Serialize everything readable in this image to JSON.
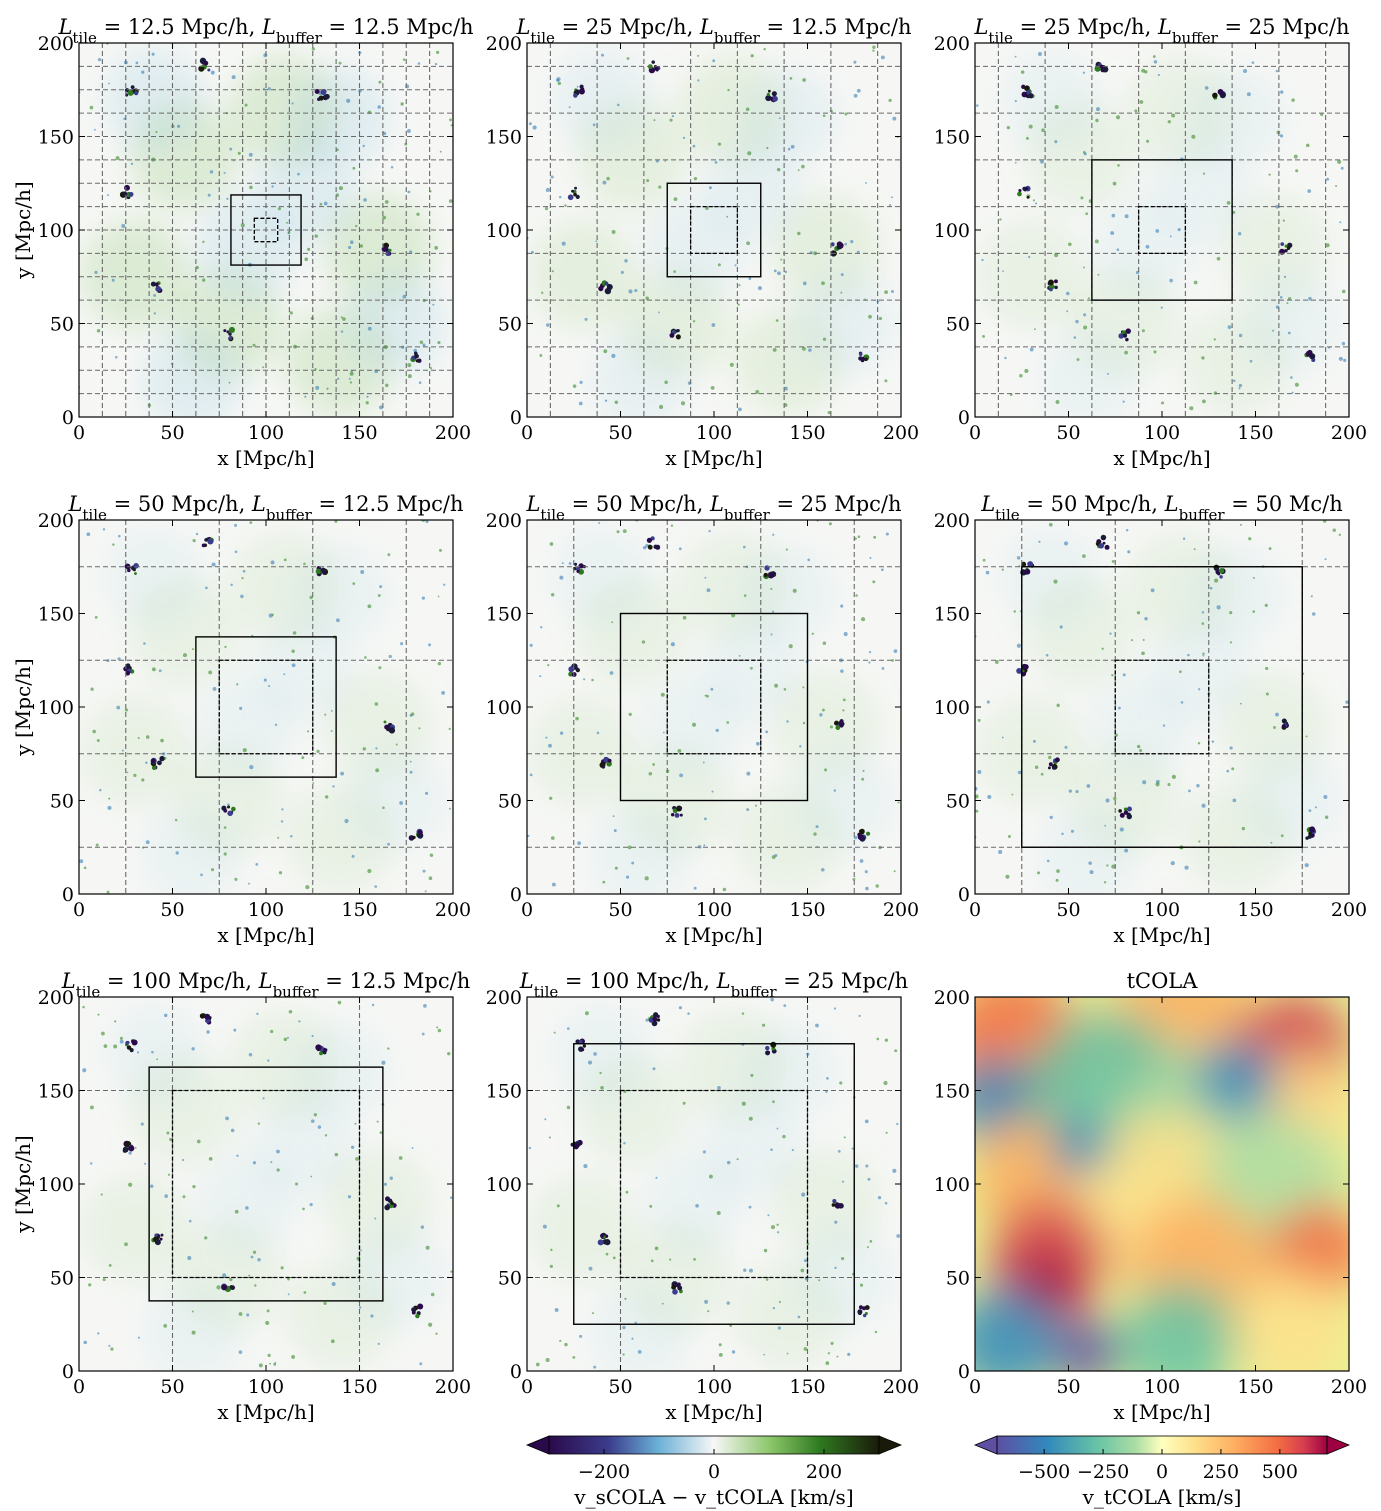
{
  "chart_data": [
    {
      "type": "heatmap",
      "title": "L_tile = 12.5 Mpc/h, L_buffer = 12.5 Mpc/h",
      "title_parts": {
        "tile_value": "12.5 Mpc/h",
        "buffer_value": "12.5 Mpc/h"
      },
      "xlabel": "x [Mpc/h]",
      "ylabel": "y [Mpc/h]",
      "xlim": [
        0,
        200
      ],
      "ylim": [
        0,
        200
      ],
      "xticks": [
        0,
        50,
        100,
        150,
        200
      ],
      "yticks": [
        0,
        50,
        100,
        150,
        200
      ],
      "tile_size": 12.5,
      "buffer_size": 12.5,
      "grid_lines": [
        12.5,
        25,
        37.5,
        50,
        62.5,
        75,
        87.5,
        100,
        112.5,
        125,
        137.5,
        150,
        162.5,
        175,
        187.5
      ],
      "inner_box": [
        93.75,
        106.25
      ],
      "outer_box": [
        81.25,
        118.75
      ],
      "colormap": "diverging blue-white-green",
      "show_ylabel": true,
      "show_xlabel": true
    },
    {
      "type": "heatmap",
      "title": "L_tile = 25 Mpc/h, L_buffer = 12.5 Mpc/h",
      "title_parts": {
        "tile_value": "25 Mpc/h",
        "buffer_value": "12.5 Mpc/h"
      },
      "xlabel": "x [Mpc/h]",
      "ylabel": "",
      "xlim": [
        0,
        200
      ],
      "ylim": [
        0,
        200
      ],
      "xticks": [
        0,
        50,
        100,
        150,
        200
      ],
      "yticks": [
        0,
        50,
        100,
        150,
        200
      ],
      "tile_size": 25,
      "buffer_size": 12.5,
      "grid_lines": [
        12.5,
        37.5,
        62.5,
        87.5,
        112.5,
        137.5,
        162.5,
        187.5
      ],
      "inner_box": [
        87.5,
        112.5
      ],
      "outer_box": [
        75,
        125
      ],
      "colormap": "diverging blue-white-green",
      "show_ylabel": false,
      "show_xlabel": true
    },
    {
      "type": "heatmap",
      "title": "L_tile = 25 Mpc/h, L_buffer = 25 Mpc/h",
      "title_parts": {
        "tile_value": "25 Mpc/h",
        "buffer_value": "25 Mpc/h"
      },
      "xlabel": "x [Mpc/h]",
      "ylabel": "",
      "xlim": [
        0,
        200
      ],
      "ylim": [
        0,
        200
      ],
      "xticks": [
        0,
        50,
        100,
        150,
        200
      ],
      "yticks": [
        0,
        50,
        100,
        150,
        200
      ],
      "tile_size": 25,
      "buffer_size": 25,
      "grid_lines": [
        12.5,
        37.5,
        62.5,
        87.5,
        112.5,
        137.5,
        162.5,
        187.5
      ],
      "inner_box": [
        87.5,
        112.5
      ],
      "outer_box": [
        62.5,
        137.5
      ],
      "colormap": "diverging blue-white-green",
      "show_ylabel": false,
      "show_xlabel": true
    },
    {
      "type": "heatmap",
      "title": "L_tile = 50 Mpc/h, L_buffer = 12.5 Mpc/h",
      "title_parts": {
        "tile_value": "50 Mpc/h",
        "buffer_value": "12.5 Mpc/h"
      },
      "xlabel": "x [Mpc/h]",
      "ylabel": "y [Mpc/h]",
      "xlim": [
        0,
        200
      ],
      "ylim": [
        0,
        200
      ],
      "xticks": [
        0,
        50,
        100,
        150,
        200
      ],
      "yticks": [
        0,
        50,
        100,
        150,
        200
      ],
      "tile_size": 50,
      "buffer_size": 12.5,
      "grid_lines": [
        25,
        75,
        125,
        175
      ],
      "inner_box": [
        75,
        125
      ],
      "outer_box": [
        62.5,
        137.5
      ],
      "colormap": "diverging blue-white-green",
      "show_ylabel": true,
      "show_xlabel": true
    },
    {
      "type": "heatmap",
      "title": "L_tile = 50 Mpc/h, L_buffer = 25 Mpc/h",
      "title_parts": {
        "tile_value": "50 Mpc/h",
        "buffer_value": "25 Mpc/h"
      },
      "xlabel": "x [Mpc/h]",
      "ylabel": "",
      "xlim": [
        0,
        200
      ],
      "ylim": [
        0,
        200
      ],
      "xticks": [
        0,
        50,
        100,
        150,
        200
      ],
      "yticks": [
        0,
        50,
        100,
        150,
        200
      ],
      "tile_size": 50,
      "buffer_size": 25,
      "grid_lines": [
        25,
        75,
        125,
        175
      ],
      "inner_box": [
        75,
        125
      ],
      "outer_box": [
        50,
        150
      ],
      "colormap": "diverging blue-white-green",
      "show_ylabel": false,
      "show_xlabel": true
    },
    {
      "type": "heatmap",
      "title": "L_tile = 50 Mpc/h, L_buffer = 50 Mc/h",
      "title_parts": {
        "tile_value": "50 Mpc/h",
        "buffer_value": "50 Mc/h"
      },
      "xlabel": "x [Mpc/h]",
      "ylabel": "",
      "xlim": [
        0,
        200
      ],
      "ylim": [
        0,
        200
      ],
      "xticks": [
        0,
        50,
        100,
        150,
        200
      ],
      "yticks": [
        0,
        50,
        100,
        150,
        200
      ],
      "tile_size": 50,
      "buffer_size": 50,
      "grid_lines": [
        25,
        75,
        125,
        175
      ],
      "inner_box": [
        75,
        125
      ],
      "outer_box": [
        25,
        175
      ],
      "colormap": "diverging blue-white-green",
      "show_ylabel": false,
      "show_xlabel": true
    },
    {
      "type": "heatmap",
      "title": "L_tile = 100 Mpc/h, L_buffer = 12.5 Mpc/h",
      "title_parts": {
        "tile_value": "100 Mpc/h",
        "buffer_value": "12.5 Mpc/h"
      },
      "xlabel": "x [Mpc/h]",
      "ylabel": "y [Mpc/h]",
      "xlim": [
        0,
        200
      ],
      "ylim": [
        0,
        200
      ],
      "xticks": [
        0,
        50,
        100,
        150,
        200
      ],
      "yticks": [
        0,
        50,
        100,
        150,
        200
      ],
      "tile_size": 100,
      "buffer_size": 12.5,
      "grid_lines": [
        50,
        150
      ],
      "inner_box": [
        50,
        150
      ],
      "outer_box": [
        37.5,
        162.5
      ],
      "colormap": "diverging blue-white-green",
      "show_ylabel": true,
      "show_xlabel": true
    },
    {
      "type": "heatmap",
      "title": "L_tile = 100 Mpc/h, L_buffer = 25 Mpc/h",
      "title_parts": {
        "tile_value": "100 Mpc/h",
        "buffer_value": "25 Mpc/h"
      },
      "xlabel": "x [Mpc/h]",
      "ylabel": "",
      "xlim": [
        0,
        200
      ],
      "ylim": [
        0,
        200
      ],
      "xticks": [
        0,
        50,
        100,
        150,
        200
      ],
      "yticks": [
        0,
        50,
        100,
        150,
        200
      ],
      "tile_size": 100,
      "buffer_size": 25,
      "grid_lines": [
        50,
        150
      ],
      "inner_box": [
        50,
        150
      ],
      "outer_box": [
        25,
        175
      ],
      "colormap": "diverging blue-white-green",
      "show_ylabel": false,
      "show_xlabel": true
    },
    {
      "type": "heatmap",
      "title": "tCOLA",
      "xlabel": "x [Mpc/h]",
      "ylabel": "",
      "xlim": [
        0,
        200
      ],
      "ylim": [
        0,
        200
      ],
      "xticks": [
        0,
        50,
        100,
        150,
        200
      ],
      "yticks": [
        0,
        50,
        100,
        150,
        200
      ],
      "colormap": "Spectral_r",
      "show_ylabel": false,
      "show_xlabel": true
    }
  ],
  "colorbars": [
    {
      "label": "v_sCOLA − v_tCOLA [km/s]",
      "range": [
        -300,
        300
      ],
      "ticks": [
        -200,
        0,
        200
      ],
      "tick_labels": [
        "−200",
        "0",
        "200"
      ],
      "colormap": "diverging blue-white-green",
      "extend": "both"
    },
    {
      "label": "v_tCOLA [km/s]",
      "range": [
        -700,
        700
      ],
      "ticks": [
        -500,
        -250,
        0,
        250,
        500
      ],
      "tick_labels": [
        "−500",
        "−250",
        "0",
        "250",
        "500"
      ],
      "colormap": "Spectral_r",
      "extend": "both"
    }
  ],
  "colors": {
    "diff_low": "#2a0a4a",
    "diff_mid_low": "#6ab0d6",
    "diff_zero": "#f7f7f7",
    "diff_mid_high": "#4a9a30",
    "diff_high": "#1a1a0a",
    "spec_low": "#5e4fa2",
    "spec_mid": "#ffffbf",
    "spec_high": "#9e0142"
  }
}
